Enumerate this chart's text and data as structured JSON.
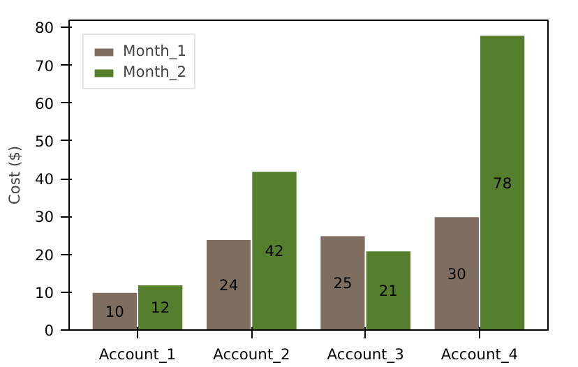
{
  "chart_data": {
    "type": "bar",
    "ylabel": "Cost ($)",
    "categories": [
      "Account_1",
      "Account_2",
      "Account_3",
      "Account_4"
    ],
    "series": [
      {
        "name": "Month_1",
        "color": "#7f6d5f",
        "values": [
          10,
          24,
          25,
          30
        ]
      },
      {
        "name": "Month_2",
        "color": "#557f2d",
        "values": [
          12,
          42,
          21,
          78
        ]
      }
    ],
    "ylim": [
      0,
      81.9
    ],
    "yticks": [
      0,
      10,
      20,
      30,
      40,
      50,
      60,
      70,
      80
    ],
    "grid": false,
    "legend": "top left",
    "data_labels": true
  }
}
